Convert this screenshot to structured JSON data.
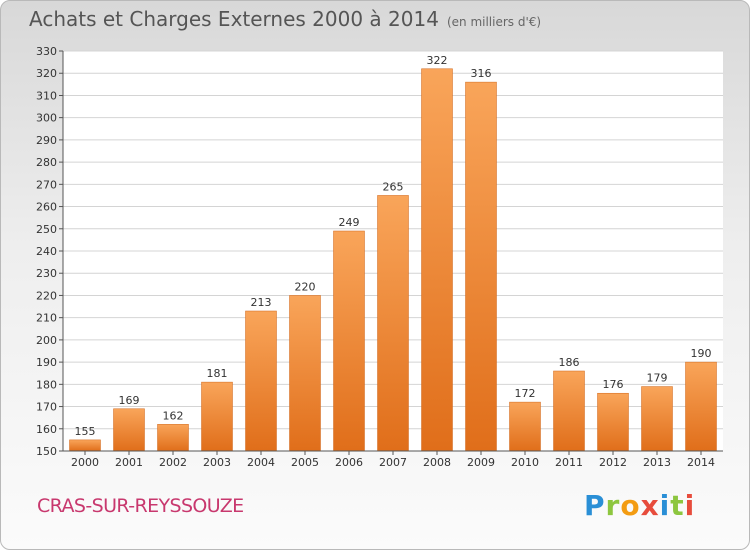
{
  "title": "Achats et Charges Externes 2000 à 2014",
  "subtitle": "(en milliers d'€)",
  "location": "CRAS-SUR-REYSSOUZE",
  "logo": {
    "letters": [
      "P",
      "r",
      "o",
      "x",
      "i",
      "t",
      "i"
    ],
    "colors": [
      "#2a8fd6",
      "#8dc63f",
      "#f39c12",
      "#e74c3c",
      "#2a8fd6",
      "#8dc63f",
      "#e74c3c"
    ]
  },
  "chart_data": {
    "type": "bar",
    "categories": [
      "2000",
      "2001",
      "2002",
      "2003",
      "2004",
      "2005",
      "2006",
      "2007",
      "2008",
      "2009",
      "2010",
      "2011",
      "2012",
      "2013",
      "2014"
    ],
    "values": [
      155,
      169,
      162,
      181,
      213,
      220,
      249,
      265,
      322,
      316,
      172,
      186,
      176,
      179,
      190
    ],
    "title": "Achats et Charges Externes 2000 à 2014",
    "subtitle": "(en milliers d'€)",
    "xlabel": "",
    "ylabel": "",
    "ylim": [
      150,
      330
    ],
    "ytick_step": 10,
    "grid": true,
    "bar_color": "#f08a2c"
  }
}
